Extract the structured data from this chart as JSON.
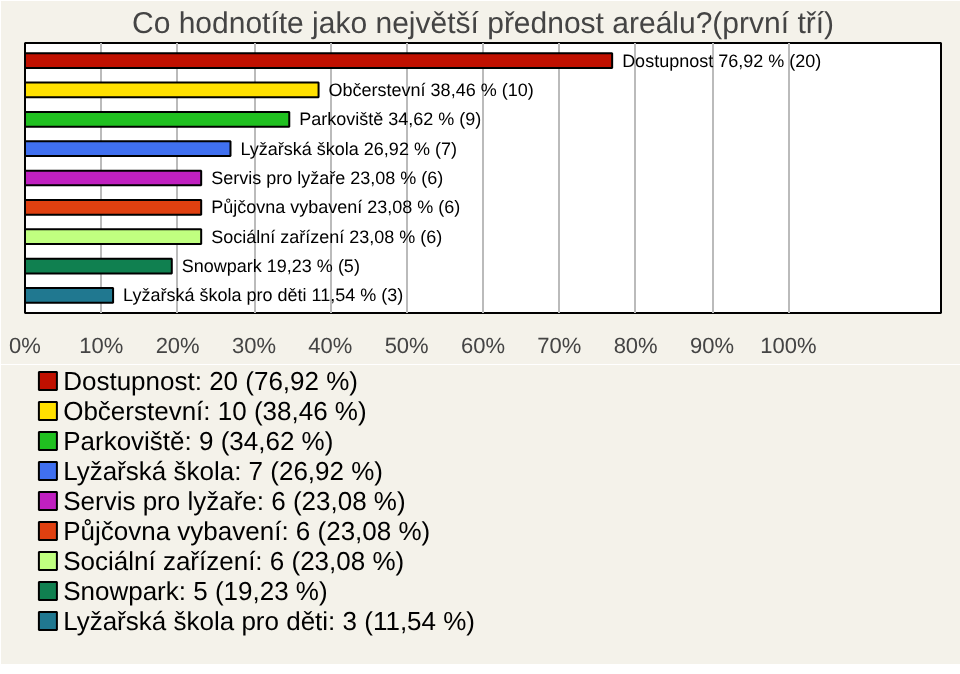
{
  "chart_data": {
    "type": "bar",
    "orientation": "horizontal",
    "title": "Co hodnotíte jako největší přednost areálu?(první tří)",
    "categories": [
      null,
      null,
      null,
      null,
      null,
      null,
      null,
      null,
      null
    ],
    "series": [
      {
        "name": "Dostupnost: 20 (76,92 %)",
        "color": "#c01000",
        "values": [
          76.92,
          null,
          null,
          null,
          null,
          null,
          null,
          null,
          null
        ],
        "value_labels": [
          "Dostupnost 76,92 % (20)",
          null,
          null,
          null,
          null,
          null,
          null,
          null,
          null
        ]
      },
      {
        "name": "Občerstevní: 10 (38,46 %)",
        "color": "#ffe000",
        "values": [
          null,
          38.46,
          null,
          null,
          null,
          null,
          null,
          null,
          null
        ],
        "value_labels": [
          null,
          "Občerstevní 38,46 % (10)",
          null,
          null,
          null,
          null,
          null,
          null,
          null
        ]
      },
      {
        "name": "Parkoviště: 9 (34,62 %)",
        "color": "#20c020",
        "values": [
          null,
          null,
          34.62,
          null,
          null,
          null,
          null,
          null,
          null
        ],
        "value_labels": [
          null,
          null,
          "Parkoviště 34,62 % (9)",
          null,
          null,
          null,
          null,
          null,
          null
        ]
      },
      {
        "name": "Lyžařská škola: 7 (26,92 %)",
        "color": "#4070f0",
        "values": [
          null,
          null,
          null,
          26.92,
          null,
          null,
          null,
          null,
          null
        ],
        "value_labels": [
          null,
          null,
          null,
          "Lyžařská škola 26,92 % (7)",
          null,
          null,
          null,
          null,
          null
        ]
      },
      {
        "name": "Servis pro lyžaře: 6 (23,08 %)",
        "color": "#c020c0",
        "values": [
          null,
          null,
          null,
          null,
          23.08,
          null,
          null,
          null,
          null
        ],
        "value_labels": [
          null,
          null,
          null,
          null,
          "Servis pro lyžaře 23,08 % (6)",
          null,
          null,
          null,
          null
        ]
      },
      {
        "name": "Půjčovna vybavení: 6 (23,08 %)",
        "color": "#e04010",
        "values": [
          null,
          null,
          null,
          null,
          null,
          23.08,
          null,
          null,
          null
        ],
        "value_labels": [
          null,
          null,
          null,
          null,
          null,
          "Půjčovna vybavení 23,08 % (6)",
          null,
          null,
          null
        ]
      },
      {
        "name": "Sociální zařízení: 6 (23,08 %)",
        "color": "#c0ff80",
        "values": [
          null,
          null,
          null,
          null,
          null,
          null,
          23.08,
          null,
          null
        ],
        "value_labels": [
          null,
          null,
          null,
          null,
          null,
          null,
          "Sociální zařízení 23,08 % (6)",
          null,
          null
        ]
      },
      {
        "name": "Snowpark: 5 (19,23 %)",
        "color": "#108050",
        "values": [
          null,
          null,
          null,
          null,
          null,
          null,
          null,
          19.23,
          null
        ],
        "value_labels": [
          null,
          null,
          null,
          null,
          null,
          null,
          null,
          "Snowpark 19,23 % (5)",
          null
        ]
      },
      {
        "name": "Lyžařská škola pro děti: 3 (11,54 %)",
        "color": "#207890",
        "values": [
          null,
          null,
          null,
          null,
          null,
          null,
          null,
          null,
          11.54
        ],
        "value_labels": [
          null,
          null,
          null,
          null,
          null,
          null,
          null,
          null,
          "Lyžařská škola pro děti 11,54 % (3)"
        ]
      }
    ],
    "xlim": [
      0,
      120
    ],
    "xticks": [
      {
        "value": 0,
        "label": "0%"
      },
      {
        "value": 10,
        "label": "10%"
      },
      {
        "value": 20,
        "label": "20%"
      },
      {
        "value": 30,
        "label": "30%"
      },
      {
        "value": 40,
        "label": "40%"
      },
      {
        "value": 50,
        "label": "50%"
      },
      {
        "value": 60,
        "label": "60%"
      },
      {
        "value": 70,
        "label": "70%"
      },
      {
        "value": 80,
        "label": "80%"
      },
      {
        "value": 90,
        "label": "90%"
      },
      {
        "value": 100,
        "label": "100%"
      }
    ],
    "grid": "x",
    "legend": "bottom",
    "stacked": true
  }
}
